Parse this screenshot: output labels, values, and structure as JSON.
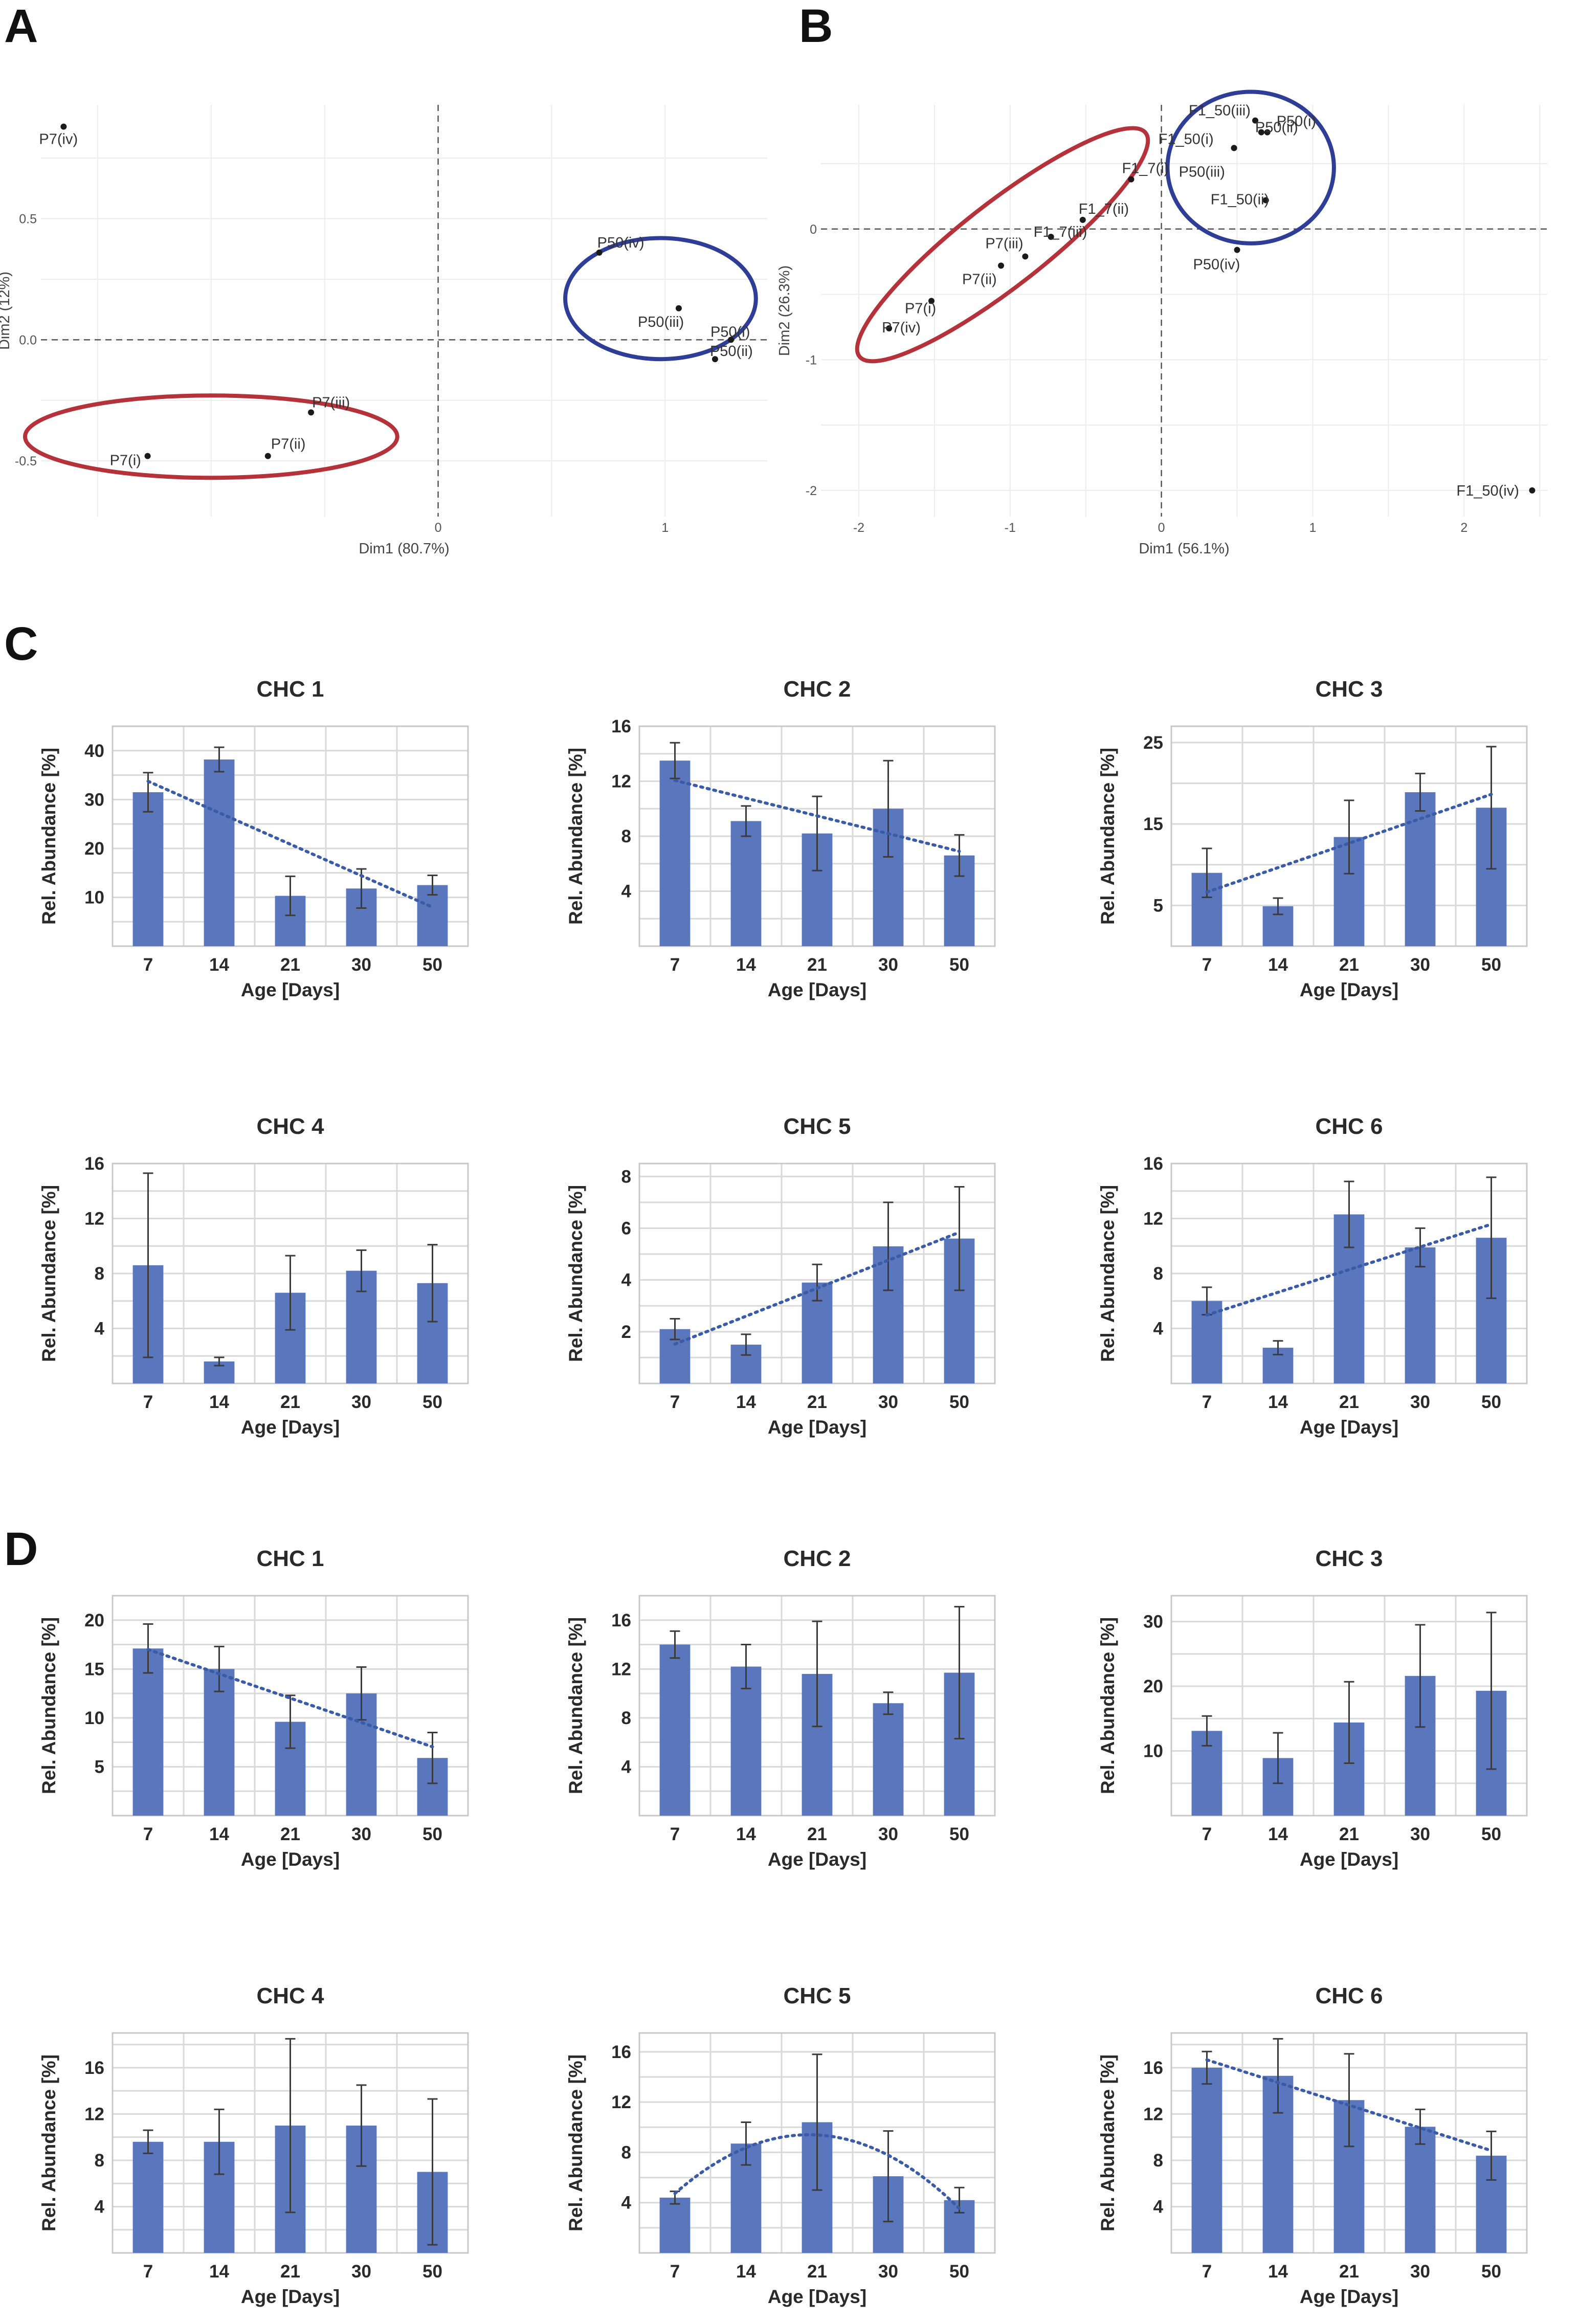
{
  "panels": [
    "A",
    "B",
    "C",
    "D"
  ],
  "colors": {
    "bar": "#5a76bd",
    "trend": "#3a5ba8",
    "ellipse_red": "#b5323a",
    "ellipse_blue": "#2e3d96",
    "point": "#1a1a1a"
  },
  "chart_data": [
    {
      "panel": "A",
      "type": "scatter",
      "xlabel": "Dim1 (80.7%)",
      "ylabel": "Dim2 (12%)",
      "xlim": [
        -1.75,
        1.45
      ],
      "ylim": [
        -0.73,
        0.97
      ],
      "xticks": [
        0,
        1
      ],
      "yticks": [
        -0.5,
        0.0,
        0.5
      ],
      "grid": true,
      "points": [
        {
          "label": "P7(iv)",
          "x": -1.65,
          "y": 0.88
        },
        {
          "label": "P7(iii)",
          "x": -0.56,
          "y": -0.3
        },
        {
          "label": "P7(ii)",
          "x": -0.75,
          "y": -0.48
        },
        {
          "label": "P7(i)",
          "x": -1.28,
          "y": -0.48
        },
        {
          "label": "P50(iv)",
          "x": 0.71,
          "y": 0.36
        },
        {
          "label": "P50(iii)",
          "x": 1.06,
          "y": 0.13
        },
        {
          "label": "P50(i)",
          "x": 1.29,
          "y": 0.0
        },
        {
          "label": "P50(ii)",
          "x": 1.22,
          "y": -0.08
        }
      ],
      "groups": [
        {
          "members": [
            "P7(i)",
            "P7(ii)",
            "P7(iii)"
          ],
          "color": "#b5323a"
        },
        {
          "members": [
            "P50(i)",
            "P50(ii)",
            "P50(iii)",
            "P50(iv)"
          ],
          "color": "#2e3d96"
        }
      ]
    },
    {
      "panel": "B",
      "type": "scatter",
      "xlabel": "Dim1 (56.1%)",
      "ylabel": "Dim2 (26.3%)",
      "xlim": [
        -2.25,
        2.55
      ],
      "ylim": [
        -2.2,
        0.95
      ],
      "xticks": [
        -2,
        -1,
        0,
        1,
        2
      ],
      "yticks": [
        -2,
        -1,
        0
      ],
      "grid": true,
      "points": [
        {
          "label": "F1_50(iii)",
          "x": 0.62,
          "y": 0.83
        },
        {
          "label": "P50(i)",
          "x": 0.7,
          "y": 0.74
        },
        {
          "label": "F1_50(i)",
          "x": 0.48,
          "y": 0.62
        },
        {
          "label": "P50(ii)",
          "x": 0.66,
          "y": 0.74
        },
        {
          "label": "P50(iii)",
          "x": 0.48,
          "y": 0.62
        },
        {
          "label": "F1_50(ii)",
          "x": 0.69,
          "y": 0.22
        },
        {
          "label": "P50(iv)",
          "x": 0.5,
          "y": -0.16
        },
        {
          "label": "F1_7(i)",
          "x": -0.2,
          "y": 0.38
        },
        {
          "label": "F1_7(ii)",
          "x": -0.52,
          "y": 0.07
        },
        {
          "label": "F1_7(iii)",
          "x": -0.73,
          "y": -0.06
        },
        {
          "label": "P7(iii)",
          "x": -0.9,
          "y": -0.21
        },
        {
          "label": "P7(ii)",
          "x": -1.06,
          "y": -0.28
        },
        {
          "label": "P7(i)",
          "x": -1.52,
          "y": -0.55
        },
        {
          "label": "P7(iv)",
          "x": -1.8,
          "y": -0.76
        },
        {
          "label": "F1_50(iv)",
          "x": 2.45,
          "y": -2.0
        }
      ],
      "groups": [
        {
          "members": [
            "P7(i)",
            "P7(ii)",
            "P7(iii)",
            "P7(iv)",
            "F1_7(i)",
            "F1_7(ii)",
            "F1_7(iii)"
          ],
          "color": "#b5323a"
        },
        {
          "members": [
            "F1_50(i)",
            "F1_50(ii)",
            "F1_50(iii)",
            "P50(i)",
            "P50(ii)",
            "P50(iii)",
            "P50(iv)"
          ],
          "color": "#2e3d96"
        }
      ]
    },
    {
      "panel": "C",
      "type": "bar",
      "title": "CHC 1",
      "xlabel": "Age [Days]",
      "ylabel": "Rel. Abundance [%]",
      "categories": [
        "7",
        "14",
        "21",
        "30",
        "50"
      ],
      "values": [
        31.5,
        38.2,
        10.3,
        11.8,
        12.5
      ],
      "errors": [
        4.0,
        2.5,
        4.0,
        4.0,
        2.0
      ],
      "ylim": [
        0,
        45
      ],
      "yticks": [
        10,
        20,
        30,
        40
      ],
      "trend": "linear"
    },
    {
      "panel": "C",
      "type": "bar",
      "title": "CHC 2",
      "xlabel": "Age [Days]",
      "ylabel": "Rel. Abundance [%]",
      "categories": [
        "7",
        "14",
        "21",
        "30",
        "50"
      ],
      "values": [
        13.5,
        9.1,
        8.2,
        10.0,
        6.6
      ],
      "errors": [
        1.3,
        1.1,
        2.7,
        3.5,
        1.5
      ],
      "ylim": [
        0,
        16
      ],
      "yticks": [
        4,
        8,
        12,
        16
      ],
      "trend": "linear"
    },
    {
      "panel": "C",
      "type": "bar",
      "title": "CHC 3",
      "xlabel": "Age [Days]",
      "ylabel": "Rel. Abundance [%]",
      "categories": [
        "7",
        "14",
        "21",
        "30",
        "50"
      ],
      "values": [
        9.0,
        4.9,
        13.4,
        18.9,
        17.0
      ],
      "errors": [
        3.0,
        1.0,
        4.5,
        2.3,
        7.5
      ],
      "ylim": [
        0,
        27
      ],
      "yticks": [
        5,
        15,
        25
      ],
      "trend": "linear"
    },
    {
      "panel": "C",
      "type": "bar",
      "title": "CHC 4",
      "xlabel": "Age [Days]",
      "ylabel": "Rel. Abundance [%]",
      "categories": [
        "7",
        "14",
        "21",
        "30",
        "50"
      ],
      "values": [
        8.6,
        1.6,
        6.6,
        8.2,
        7.3
      ],
      "errors": [
        6.7,
        0.3,
        2.7,
        1.5,
        2.8
      ],
      "ylim": [
        0,
        16
      ],
      "yticks": [
        4,
        8,
        12,
        16
      ],
      "trend": "none"
    },
    {
      "panel": "C",
      "type": "bar",
      "title": "CHC 5",
      "xlabel": "Age [Days]",
      "ylabel": "Rel. Abundance [%]",
      "categories": [
        "7",
        "14",
        "21",
        "30",
        "50"
      ],
      "values": [
        2.1,
        1.5,
        3.9,
        5.3,
        5.6
      ],
      "errors": [
        0.4,
        0.4,
        0.7,
        1.7,
        2.0
      ],
      "ylim": [
        0,
        8.5
      ],
      "yticks": [
        2,
        4,
        6,
        8
      ],
      "trend": "linear"
    },
    {
      "panel": "C",
      "type": "bar",
      "title": "CHC 6",
      "xlabel": "Age [Days]",
      "ylabel": "Rel. Abundance [%]",
      "categories": [
        "7",
        "14",
        "21",
        "30",
        "50"
      ],
      "values": [
        6.0,
        2.6,
        12.3,
        9.9,
        10.6
      ],
      "errors": [
        1.0,
        0.5,
        2.4,
        1.4,
        4.4
      ],
      "ylim": [
        0,
        16
      ],
      "yticks": [
        4,
        8,
        12,
        16
      ],
      "trend": "linear"
    },
    {
      "panel": "D",
      "type": "bar",
      "title": "CHC 1",
      "xlabel": "Age [Days]",
      "ylabel": "Rel. Abundance [%]",
      "categories": [
        "7",
        "14",
        "21",
        "30",
        "50"
      ],
      "values": [
        17.1,
        15.0,
        9.6,
        12.5,
        5.9
      ],
      "errors": [
        2.5,
        2.3,
        2.7,
        2.7,
        2.6
      ],
      "ylim": [
        0,
        22.5
      ],
      "yticks": [
        5,
        10,
        15,
        20
      ],
      "trend": "linear"
    },
    {
      "panel": "D",
      "type": "bar",
      "title": "CHC 2",
      "xlabel": "Age [Days]",
      "ylabel": "Rel. Abundance [%]",
      "categories": [
        "7",
        "14",
        "21",
        "30",
        "50"
      ],
      "values": [
        14.0,
        12.2,
        11.6,
        9.2,
        11.7
      ],
      "errors": [
        1.1,
        1.8,
        4.3,
        0.9,
        5.4
      ],
      "ylim": [
        0,
        18
      ],
      "yticks": [
        4,
        8,
        12,
        16
      ],
      "trend": "none"
    },
    {
      "panel": "D",
      "type": "bar",
      "title": "CHC 3",
      "xlabel": "Age [Days]",
      "ylabel": "Rel. Abundance [%]",
      "categories": [
        "7",
        "14",
        "21",
        "30",
        "50"
      ],
      "values": [
        13.1,
        8.9,
        14.4,
        21.6,
        19.3
      ],
      "errors": [
        2.3,
        3.9,
        6.3,
        7.9,
        12.1
      ],
      "ylim": [
        0,
        34
      ],
      "yticks": [
        10,
        20,
        30
      ],
      "trend": "none"
    },
    {
      "panel": "D",
      "type": "bar",
      "title": "CHC 4",
      "xlabel": "Age [Days]",
      "ylabel": "Rel. Abundance [%]",
      "categories": [
        "7",
        "14",
        "21",
        "30",
        "50"
      ],
      "values": [
        9.6,
        9.6,
        11.0,
        11.0,
        7.0
      ],
      "errors": [
        1.0,
        2.8,
        7.5,
        3.5,
        6.3
      ],
      "ylim": [
        0,
        19
      ],
      "yticks": [
        4,
        8,
        12,
        16
      ],
      "trend": "none"
    },
    {
      "panel": "D",
      "type": "bar",
      "title": "CHC 5",
      "xlabel": "Age [Days]",
      "ylabel": "Rel. Abundance [%]",
      "categories": [
        "7",
        "14",
        "21",
        "30",
        "50"
      ],
      "values": [
        4.4,
        8.7,
        10.4,
        6.1,
        4.2
      ],
      "errors": [
        0.5,
        1.7,
        5.4,
        3.6,
        1.0
      ],
      "ylim": [
        0,
        17.5
      ],
      "yticks": [
        4,
        8,
        12,
        16
      ],
      "trend": "quadratic"
    },
    {
      "panel": "D",
      "type": "bar",
      "title": "CHC 6",
      "xlabel": "Age [Days]",
      "ylabel": "Rel. Abundance [%]",
      "categories": [
        "7",
        "14",
        "21",
        "30",
        "50"
      ],
      "values": [
        16.0,
        15.3,
        13.2,
        10.9,
        8.4
      ],
      "errors": [
        1.4,
        3.2,
        4.0,
        1.5,
        2.1
      ],
      "ylim": [
        0,
        19
      ],
      "yticks": [
        4,
        8,
        12,
        16
      ],
      "trend": "linear"
    }
  ]
}
